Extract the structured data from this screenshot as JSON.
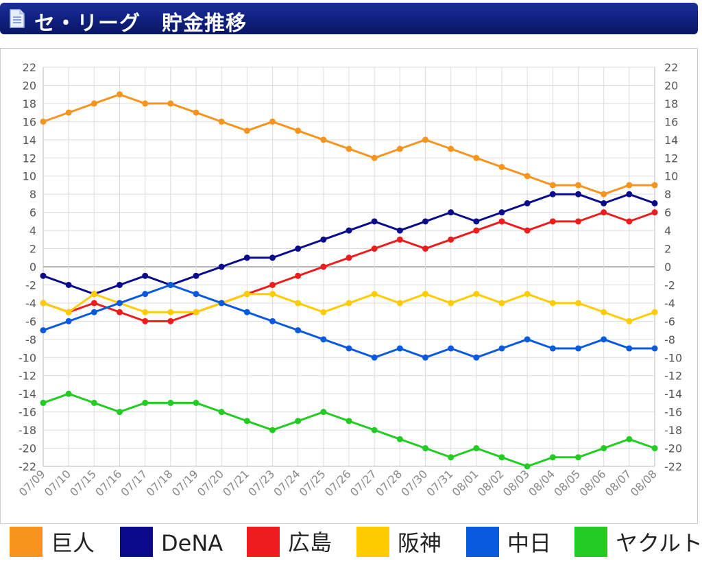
{
  "header": {
    "title": "セ・リーグ　貯金推移",
    "icon": "document-icon"
  },
  "legend": [
    {
      "label": "巨人",
      "color": "#f7941d"
    },
    {
      "label": "DeNA",
      "color": "#0a0a8c"
    },
    {
      "label": "広島",
      "color": "#ee1c1c"
    },
    {
      "label": "阪神",
      "color": "#ffcc00"
    },
    {
      "label": "中日",
      "color": "#0a5ae0"
    },
    {
      "label": "ヤクルト",
      "color": "#22cc22"
    }
  ],
  "chart_data": {
    "type": "line",
    "title": "セ・リーグ　貯金推移",
    "xlabel": "",
    "ylabel": "",
    "ylim": [
      -22,
      22
    ],
    "yticks": [
      22,
      20,
      18,
      16,
      14,
      12,
      10,
      8,
      6,
      4,
      2,
      0,
      -2,
      -4,
      -6,
      -8,
      -10,
      -12,
      -14,
      -16,
      -18,
      -20,
      -22
    ],
    "grid": true,
    "categories": [
      "07/09",
      "07/10",
      "07/15",
      "07/16",
      "07/17",
      "07/18",
      "07/19",
      "07/20",
      "07/21",
      "07/23",
      "07/24",
      "07/25",
      "07/26",
      "07/27",
      "07/28",
      "07/30",
      "07/31",
      "08/01",
      "08/02",
      "08/03",
      "08/04",
      "08/05",
      "08/06",
      "08/07",
      "08/08"
    ],
    "series": [
      {
        "name": "巨人",
        "color": "#f7941d",
        "values": [
          16,
          17,
          18,
          19,
          18,
          18,
          17,
          16,
          15,
          16,
          15,
          14,
          13,
          12,
          13,
          14,
          13,
          12,
          11,
          10,
          9,
          9,
          8,
          9,
          9
        ]
      },
      {
        "name": "DeNA",
        "color": "#0a0a8c",
        "values": [
          -1,
          -2,
          -3,
          -2,
          -1,
          -2,
          -1,
          0,
          1,
          1,
          2,
          3,
          4,
          5,
          4,
          5,
          6,
          5,
          6,
          7,
          8,
          8,
          7,
          8,
          7
        ]
      },
      {
        "name": "広島",
        "color": "#ee1c1c",
        "values": [
          -4,
          -5,
          -4,
          -5,
          -6,
          -6,
          -5,
          -4,
          -3,
          -2,
          -1,
          0,
          1,
          2,
          3,
          2,
          3,
          4,
          5,
          4,
          5,
          5,
          6,
          5,
          6
        ]
      },
      {
        "name": "阪神",
        "color": "#ffcc00",
        "values": [
          -4,
          -5,
          -3,
          -4,
          -5,
          -5,
          -5,
          -4,
          -3,
          -3,
          -4,
          -5,
          -4,
          -3,
          -4,
          -3,
          -4,
          -3,
          -4,
          -3,
          -4,
          -4,
          -5,
          -6,
          -5
        ]
      },
      {
        "name": "中日",
        "color": "#0a5ae0",
        "values": [
          -7,
          -6,
          -5,
          -4,
          -3,
          -2,
          -3,
          -4,
          -5,
          -6,
          -7,
          -8,
          -9,
          -10,
          -9,
          -10,
          -9,
          -10,
          -9,
          -8,
          -9,
          -9,
          -8,
          -9,
          -9
        ]
      },
      {
        "name": "ヤクルト",
        "color": "#22cc22",
        "values": [
          -15,
          -14,
          -15,
          -16,
          -15,
          -15,
          -15,
          -16,
          -17,
          -18,
          -17,
          -16,
          -17,
          -18,
          -19,
          -20,
          -21,
          -20,
          -21,
          -22,
          -21,
          -21,
          -20,
          -19,
          -20
        ]
      }
    ]
  }
}
